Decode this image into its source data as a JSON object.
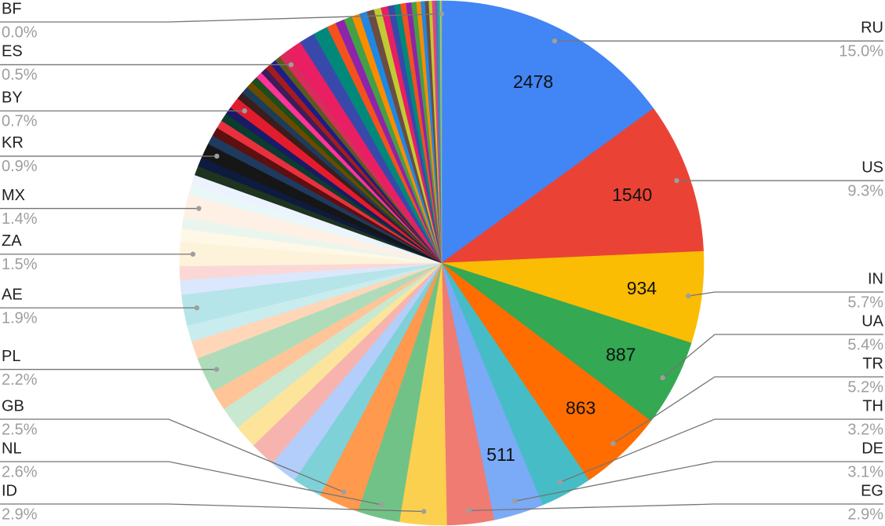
{
  "chart_data": {
    "type": "pie",
    "categories": [
      "RU",
      "US",
      "IN",
      "UA",
      "TR",
      "TH",
      "DE",
      "EG",
      "ID",
      "NL",
      "GB",
      null,
      null,
      null,
      null,
      null,
      null,
      "PL",
      null,
      null,
      "AE",
      null,
      null,
      "ZA",
      null,
      null,
      "MX",
      null,
      null,
      null,
      null,
      "KR",
      null,
      null,
      null,
      null,
      null,
      "BY",
      null,
      null,
      null,
      null,
      null,
      null,
      null,
      null,
      null,
      "ES",
      null,
      null,
      null,
      null,
      null,
      null,
      null,
      null,
      null,
      null,
      null,
      null,
      null,
      null,
      null,
      null,
      null,
      null,
      null,
      null,
      null,
      null,
      null,
      null,
      "BF"
    ],
    "values": [
      2478,
      1540,
      934,
      887,
      863,
      529,
      511,
      479,
      479,
      430,
      413,
      300,
      280,
      260,
      240,
      230,
      210,
      363,
      180,
      167,
      314,
      150,
      139,
      248,
      130,
      118,
      231,
      105,
      100,
      96,
      95,
      149,
      95,
      90,
      85,
      82,
      78,
      116,
      75,
      72,
      70,
      68,
      66,
      64,
      62,
      60,
      58,
      83,
      170,
      160,
      150,
      95,
      90,
      85,
      80,
      78,
      75,
      72,
      70,
      66,
      62,
      58,
      54,
      50,
      46,
      42,
      38,
      34,
      30,
      26,
      22,
      15,
      2
    ],
    "value_labels": [
      "2478",
      "1540",
      "934",
      "887",
      "863",
      null,
      "511",
      null,
      null,
      null,
      null,
      null,
      null,
      null,
      null,
      null,
      null,
      null,
      null,
      null,
      null,
      null,
      null,
      null,
      null,
      null,
      null,
      null,
      null,
      null,
      null,
      null,
      null,
      null,
      null,
      null,
      null,
      null,
      null,
      null,
      null,
      null,
      null,
      null,
      null,
      null,
      null,
      null,
      null,
      null,
      null,
      null,
      null,
      null,
      null,
      null,
      null,
      null,
      null,
      null,
      null,
      null,
      null,
      null,
      null,
      null,
      null,
      null,
      null,
      null,
      null,
      null,
      null
    ],
    "percent_labels": [
      "15.0%",
      "9.3%",
      "5.7%",
      "5.4%",
      "5.2%",
      "3.2%",
      "3.1%",
      "2.9%",
      "2.9%",
      "2.6%",
      "2.5%",
      null,
      null,
      null,
      null,
      null,
      null,
      "2.2%",
      null,
      null,
      "1.9%",
      null,
      null,
      "1.5%",
      null,
      null,
      "1.4%",
      null,
      null,
      null,
      null,
      "0.9%",
      null,
      null,
      null,
      null,
      null,
      "0.7%",
      null,
      null,
      null,
      null,
      null,
      null,
      null,
      null,
      null,
      "0.5%",
      null,
      null,
      null,
      null,
      null,
      null,
      null,
      null,
      null,
      null,
      null,
      null,
      null,
      null,
      null,
      null,
      null,
      null,
      null,
      null,
      null,
      null,
      null,
      null,
      "0.0%"
    ],
    "colors": [
      "#4285f4",
      "#ea4335",
      "#fbbc04",
      "#34a853",
      "#ff6d01",
      "#46bdc6",
      "#7baaf7",
      "#f07b72",
      "#fcd04f",
      "#71c287",
      "#ff994d",
      "#7ed1d7",
      "#b3cefb",
      "#f7b4ae",
      "#fde49b",
      "#c9e8d1",
      "#ffc599",
      "#aedcba",
      "#ffd6b8",
      "#c9ecef",
      "#b5e5e8",
      "#dbe7fd",
      "#fbd8d5",
      "#fdf3da",
      "#fff8e6",
      "#eaf6ed",
      "#fff0e6",
      "#e9f7f8",
      "#ecf3fe",
      "#1e3320",
      "#0d1b3e",
      "#161616",
      "#1f3a5f",
      "#5c1010",
      "#e8303f",
      "#0b3d2e",
      "#1a1a66",
      "#e31c2d",
      "#3d1c1c",
      "#1c3d5a",
      "#6b4a00",
      "#1c4d1c",
      "#ff3399",
      "#3d1c5a",
      "#a61c1c",
      "#1c1c8a",
      "#5a5a1c",
      "#d62d5c",
      "#e91e63",
      "#3949ab",
      "#00897b",
      "#f4511e",
      "#8e24aa",
      "#43a047",
      "#fb8c00",
      "#1e88e5",
      "#6d4c41",
      "#c0ca33",
      "#e91e63",
      "#3949ab",
      "#00897b",
      "#f4511e",
      "#8e24aa",
      "#43a047",
      "#fb8c00",
      "#1e88e5",
      "#6d4c41",
      "#c0ca33",
      "#ec407a",
      "#5c6bc0",
      "#26a69a",
      "#9ccc65",
      "#9e9e9e"
    ]
  }
}
